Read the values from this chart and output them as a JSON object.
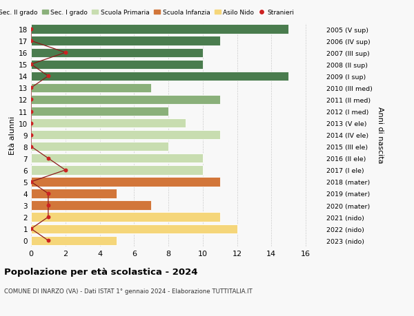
{
  "ages": [
    18,
    17,
    16,
    15,
    14,
    13,
    12,
    11,
    10,
    9,
    8,
    7,
    6,
    5,
    4,
    3,
    2,
    1,
    0
  ],
  "bar_values": [
    15,
    11,
    10,
    10,
    15,
    7,
    11,
    8,
    9,
    11,
    8,
    10,
    10,
    11,
    5,
    7,
    11,
    12,
    5
  ],
  "bar_colors": [
    "#4a7c4e",
    "#4a7c4e",
    "#4a7c4e",
    "#4a7c4e",
    "#4a7c4e",
    "#8ab07a",
    "#8ab07a",
    "#8ab07a",
    "#c8ddb0",
    "#c8ddb0",
    "#c8ddb0",
    "#c8ddb0",
    "#c8ddb0",
    "#d2763a",
    "#d2763a",
    "#d2763a",
    "#f5d67a",
    "#f5d67a",
    "#f5d67a"
  ],
  "right_labels": [
    "2005 (V sup)",
    "2006 (IV sup)",
    "2007 (III sup)",
    "2008 (II sup)",
    "2009 (I sup)",
    "2010 (III med)",
    "2011 (II med)",
    "2012 (I med)",
    "2013 (V ele)",
    "2014 (IV ele)",
    "2015 (III ele)",
    "2016 (II ele)",
    "2017 (I ele)",
    "2018 (mater)",
    "2019 (mater)",
    "2020 (mater)",
    "2021 (nido)",
    "2022 (nido)",
    "2023 (nido)"
  ],
  "stranieri_x": [
    0,
    0,
    2,
    0,
    1,
    0,
    0,
    0,
    0,
    0,
    0,
    1,
    2,
    0,
    1,
    1,
    1,
    0,
    1
  ],
  "title": "Popolazione per età scolastica - 2024",
  "subtitle": "COMUNE DI INARZO (VA) - Dati ISTAT 1° gennaio 2024 - Elaborazione TUTTITALIA.IT",
  "ylabel": "Età alunni",
  "right_ylabel": "Anni di nascita",
  "xlabel_ticks": [
    0,
    2,
    4,
    6,
    8,
    10,
    12,
    14,
    16
  ],
  "xlim": [
    0,
    17
  ],
  "ylim": [
    -0.5,
    18.5
  ],
  "legend_labels": [
    "Sec. II grado",
    "Sec. I grado",
    "Scuola Primaria",
    "Scuola Infanzia",
    "Asilo Nido",
    "Stranieri"
  ],
  "legend_colors": [
    "#4a7c4e",
    "#8ab07a",
    "#c8ddb0",
    "#d2763a",
    "#f5d67a",
    "#cc2222"
  ],
  "bg_color": "#f8f8f8",
  "grid_color": "#cccccc"
}
